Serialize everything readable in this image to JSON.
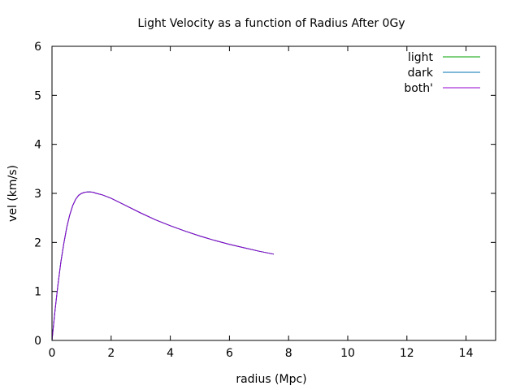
{
  "chart_data": {
    "type": "line",
    "title": "Light Velocity as a function of Radius After 0Gy",
    "xlabel": "radius (Mpc)",
    "ylabel": "vel (km/s)",
    "xlim": [
      0,
      15
    ],
    "ylim": [
      0,
      6
    ],
    "xticks": [
      "0",
      "2",
      "4",
      "6",
      "8",
      "10",
      "12",
      "14"
    ],
    "yticks": [
      "0",
      "1",
      "2",
      "3",
      "4",
      "5",
      "6"
    ],
    "grid": false,
    "legend_position": "top-right",
    "series": [
      {
        "name": "light",
        "color": "#00a000",
        "x": [
          0,
          0.1,
          0.2,
          0.3,
          0.4,
          0.5,
          0.6,
          0.7,
          0.8,
          0.9,
          1.0,
          1.1,
          1.2,
          1.3,
          1.4,
          1.5,
          1.7,
          2.0,
          2.5,
          3.0,
          3.5,
          4.0,
          4.5,
          5.0,
          5.5,
          6.0,
          6.5,
          7.0,
          7.5
        ],
        "y": [
          0,
          0.6,
          1.13,
          1.6,
          1.98,
          2.31,
          2.56,
          2.75,
          2.88,
          2.96,
          3.0,
          3.02,
          3.03,
          3.03,
          3.02,
          3.0,
          2.97,
          2.9,
          2.75,
          2.6,
          2.46,
          2.34,
          2.23,
          2.13,
          2.04,
          1.96,
          1.89,
          1.82,
          1.76
        ]
      },
      {
        "name": "dark",
        "color": "#0072b2",
        "x": [
          0,
          0.1,
          0.2,
          0.3,
          0.4,
          0.5,
          0.6,
          0.7,
          0.8,
          0.9,
          1.0,
          1.1,
          1.2,
          1.3,
          1.4,
          1.5,
          1.7,
          2.0,
          2.5,
          3.0,
          3.5,
          4.0,
          4.5,
          5.0,
          5.5,
          6.0,
          6.5,
          7.0,
          7.5
        ],
        "y": [
          0,
          0.6,
          1.13,
          1.6,
          1.98,
          2.31,
          2.56,
          2.75,
          2.88,
          2.96,
          3.0,
          3.02,
          3.03,
          3.03,
          3.02,
          3.0,
          2.97,
          2.9,
          2.75,
          2.6,
          2.46,
          2.34,
          2.23,
          2.13,
          2.04,
          1.96,
          1.89,
          1.82,
          1.76
        ]
      },
      {
        "name": "both'",
        "color": "#9400d3",
        "x": [
          0,
          0.1,
          0.2,
          0.3,
          0.4,
          0.5,
          0.6,
          0.7,
          0.8,
          0.9,
          1.0,
          1.1,
          1.2,
          1.3,
          1.4,
          1.5,
          1.7,
          2.0,
          2.5,
          3.0,
          3.5,
          4.0,
          4.5,
          5.0,
          5.5,
          6.0,
          6.5,
          7.0,
          7.5
        ],
        "y": [
          0,
          0.6,
          1.13,
          1.6,
          1.98,
          2.31,
          2.56,
          2.75,
          2.88,
          2.96,
          3.0,
          3.02,
          3.03,
          3.03,
          3.02,
          3.0,
          2.97,
          2.9,
          2.75,
          2.6,
          2.46,
          2.34,
          2.23,
          2.13,
          2.04,
          1.96,
          1.89,
          1.82,
          1.76
        ]
      }
    ]
  }
}
